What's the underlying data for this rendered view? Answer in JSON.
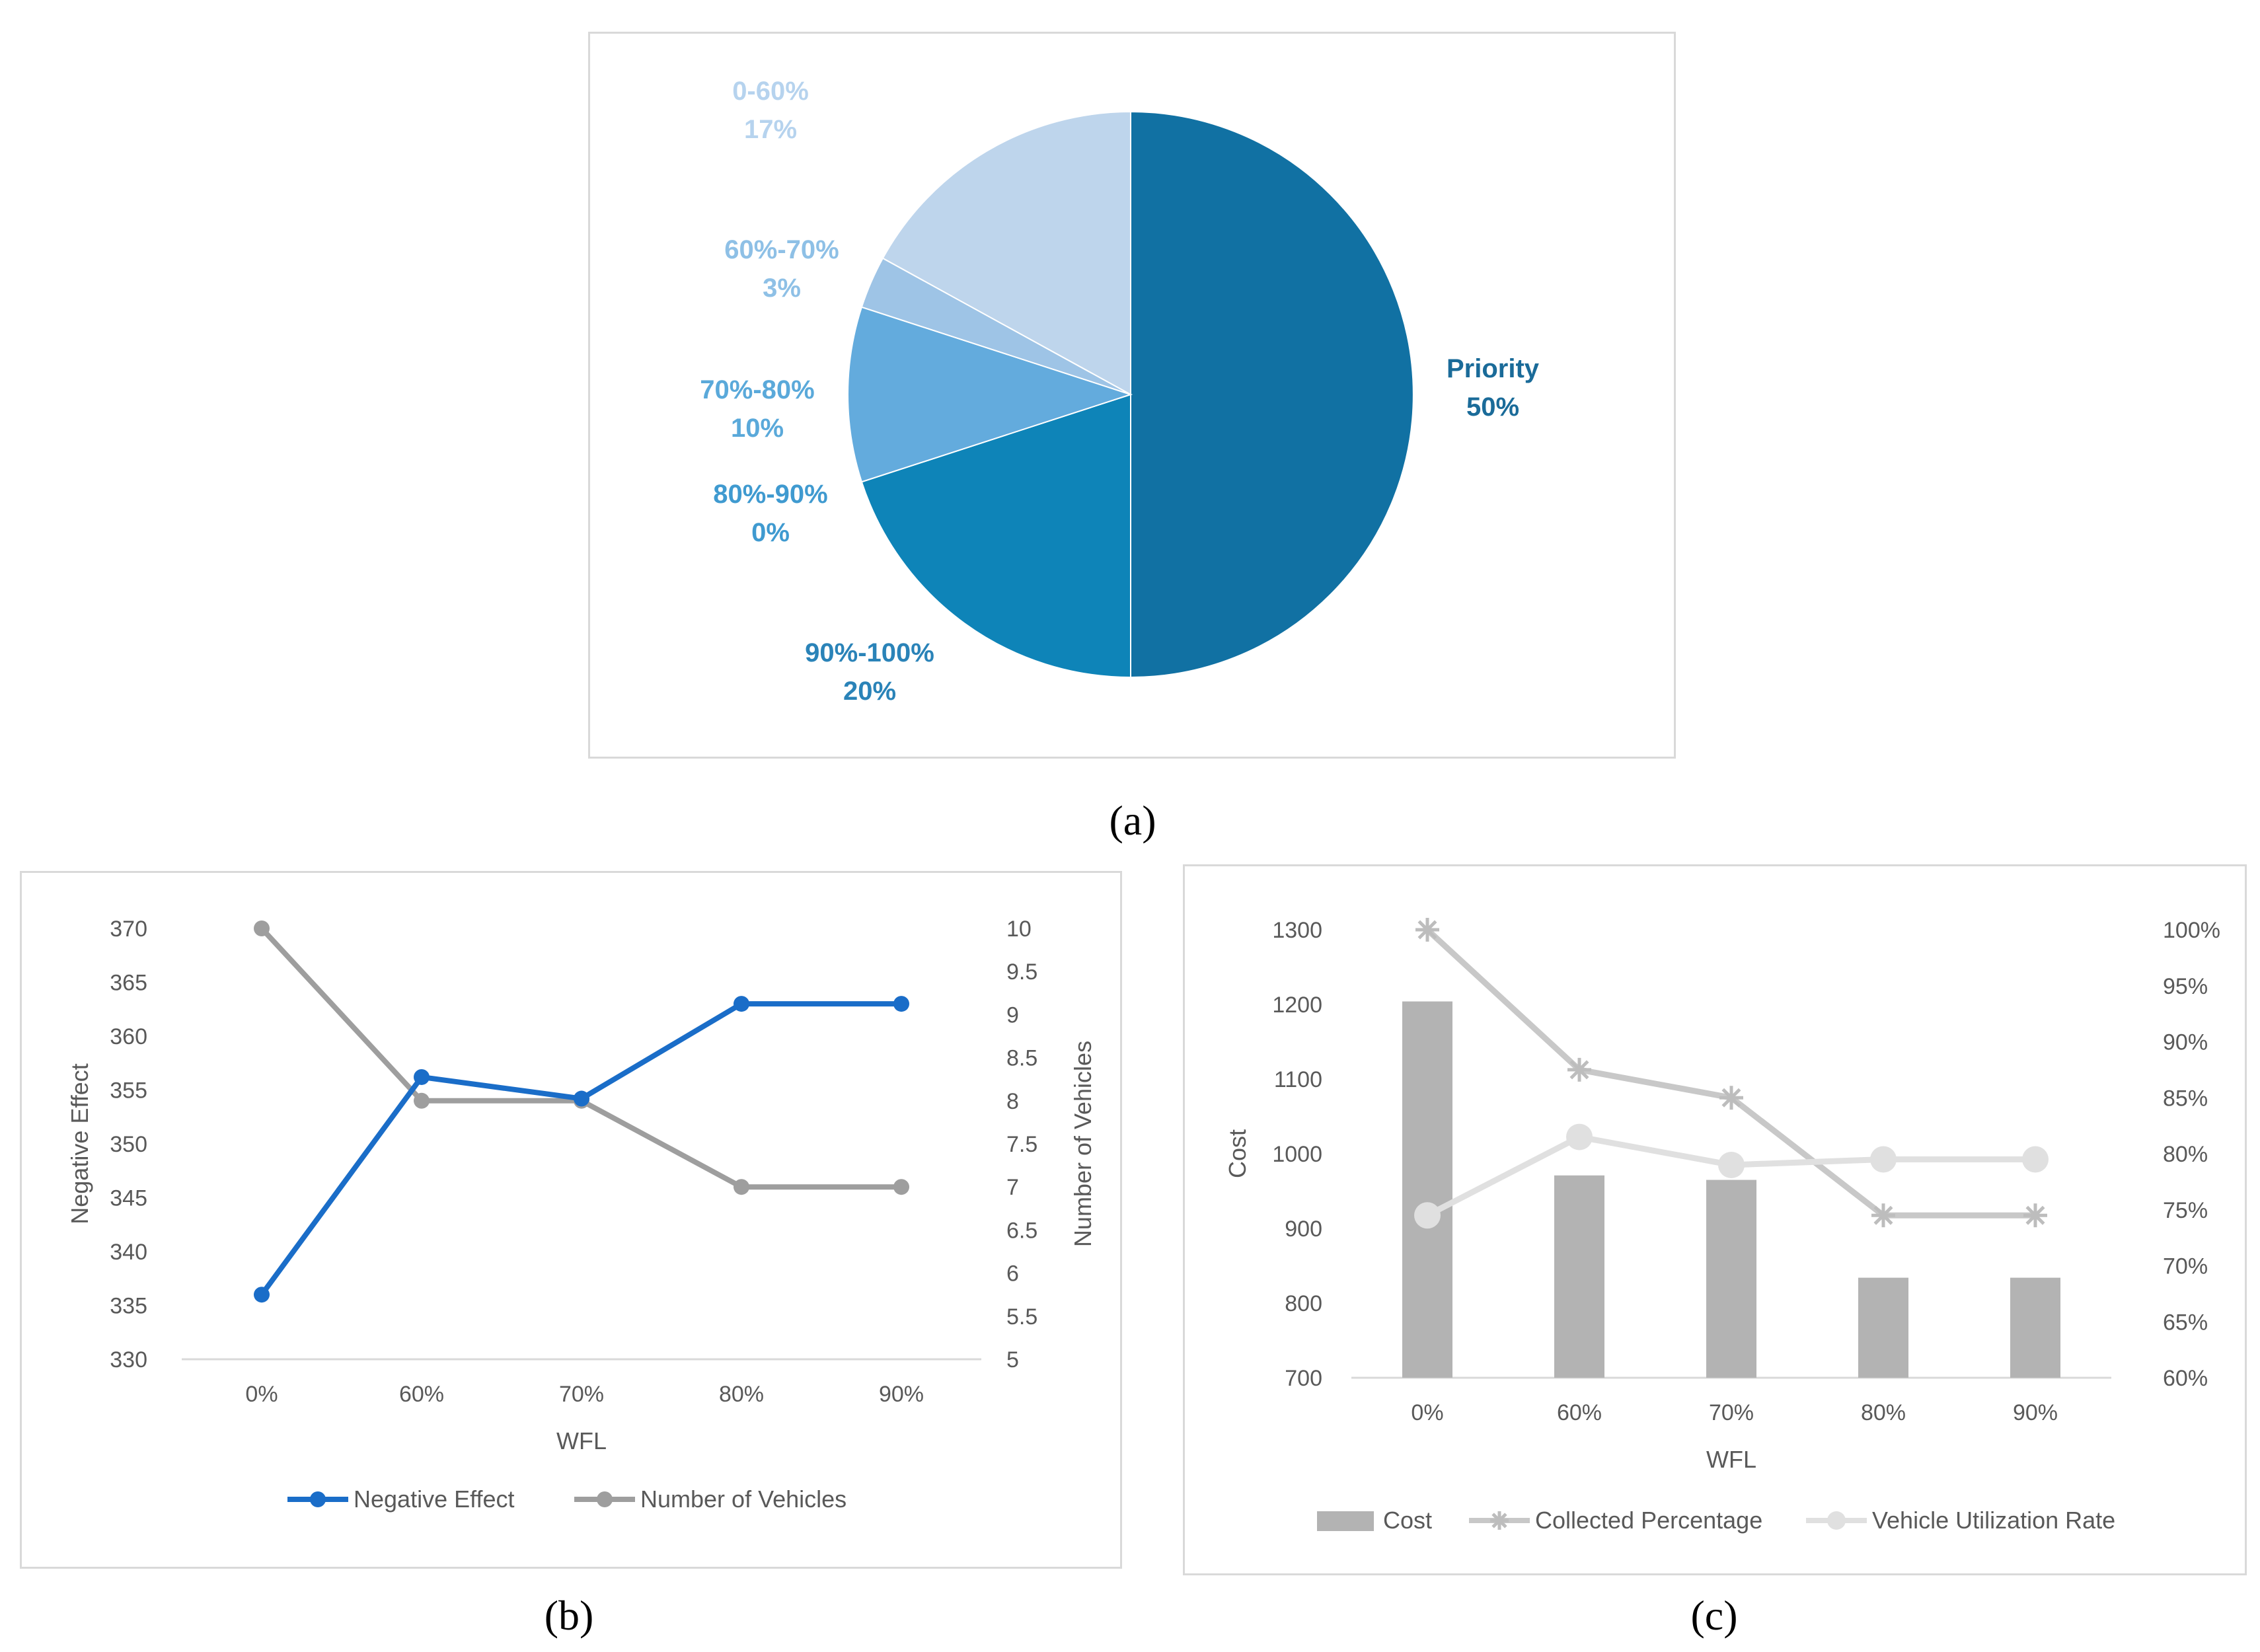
{
  "captions": {
    "a": "(a)",
    "b": "(b)",
    "c": "(c)"
  },
  "chart_data": [
    {
      "id": "a",
      "type": "pie",
      "slices": [
        {
          "label": "Priority",
          "value": 50,
          "display": "50%",
          "color": "#1171a3"
        },
        {
          "label": "90%-100%",
          "value": 20,
          "display": "20%",
          "color": "#0e84b8"
        },
        {
          "label": "80%-90%",
          "value": 0,
          "display": "0%",
          "color": "#3a9ad0"
        },
        {
          "label": "70%-80%",
          "value": 10,
          "display": "10%",
          "color": "#63abdd"
        },
        {
          "label": "60%-70%",
          "value": 3,
          "display": "3%",
          "color": "#9ec4e6"
        },
        {
          "label": "0-60%",
          "value": 17,
          "display": "17%",
          "color": "#bed5ec"
        }
      ],
      "label_colors": [
        "#1a6b99",
        "#2a83b8",
        "#3f9ad0",
        "#5aa9da",
        "#8ec0e6",
        "#b6d3ee"
      ]
    },
    {
      "id": "b",
      "type": "line",
      "categories": [
        "0%",
        "60%",
        "70%",
        "80%",
        "90%"
      ],
      "xlabel": "WFL",
      "ylabel": "Negative Effect",
      "y2label": "Number of Vehicles",
      "ylim": [
        330,
        370
      ],
      "yticks": [
        "330",
        "335",
        "340",
        "345",
        "350",
        "355",
        "360",
        "365",
        "370"
      ],
      "y2lim": [
        5,
        10
      ],
      "y2ticks": [
        "5",
        "5.5",
        "6",
        "6.5",
        "7",
        "7.5",
        "8",
        "8.5",
        "9",
        "9.5",
        "10"
      ],
      "series": [
        {
          "name": "Negative Effect",
          "axis": "left",
          "values": [
            336,
            356.2,
            354.2,
            363,
            363
          ],
          "color": "#1a6dc8"
        },
        {
          "name": "Number of Vehicles",
          "axis": "right",
          "values": [
            10,
            8,
            8,
            7,
            7
          ],
          "color": "#9e9e9e"
        }
      ],
      "legend": "bottom"
    },
    {
      "id": "c",
      "type": "bar",
      "categories": [
        "0%",
        "60%",
        "70%",
        "80%",
        "90%"
      ],
      "xlabel": "WFL",
      "ylabel": "Cost",
      "ylim": [
        700,
        1300
      ],
      "yticks": [
        "700",
        "800",
        "900",
        "1000",
        "1100",
        "1200",
        "1300"
      ],
      "y2lim": [
        60,
        100
      ],
      "y2ticks": [
        "60%",
        "65%",
        "70%",
        "75%",
        "80%",
        "85%",
        "90%",
        "95%",
        "100%"
      ],
      "series": [
        {
          "name": "Cost",
          "type": "bar",
          "axis": "left",
          "values": [
            1204,
            971,
            965,
            834,
            834
          ],
          "color": "#b3b3b3"
        },
        {
          "name": "Collected Percentage",
          "type": "line",
          "marker": "star",
          "axis": "right",
          "values": [
            100,
            87.5,
            85,
            74.5,
            74.5
          ],
          "color": "#c8c8c8"
        },
        {
          "name": "Vehicle Utilization Rate",
          "type": "line",
          "marker": "circle",
          "axis": "right",
          "values": [
            74.5,
            81.5,
            79,
            79.5,
            79.5
          ],
          "color": "#e0e0e0"
        }
      ],
      "legend": "bottom"
    }
  ]
}
